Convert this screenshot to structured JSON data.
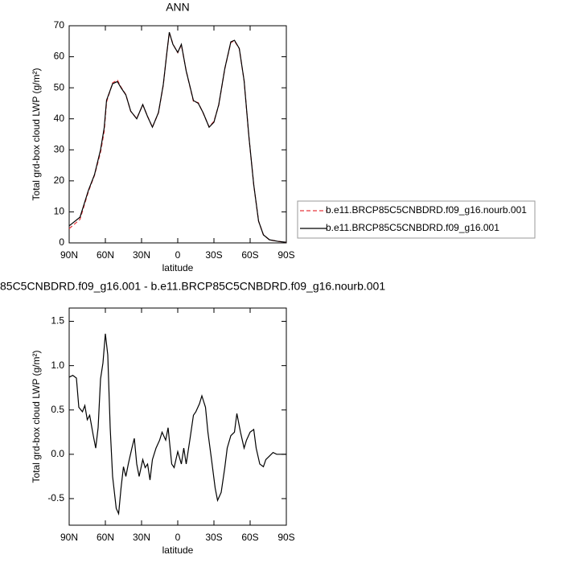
{
  "chart_data": [
    {
      "type": "line",
      "title": "ANN",
      "x_label": "latitude",
      "y_label": "Total grd-box cloud LWP (g/m²)",
      "xlim": [
        90,
        -90
      ],
      "xticks": [
        {
          "value": 90,
          "label": "90N"
        },
        {
          "value": 60,
          "label": "60N"
        },
        {
          "value": 30,
          "label": "30N"
        },
        0,
        {
          "value": -30,
          "label": "30S"
        },
        {
          "value": -60,
          "label": "60S"
        },
        {
          "value": -90,
          "label": "90S"
        }
      ],
      "ylim": [
        0,
        70
      ],
      "yticks": [
        0,
        10,
        20,
        30,
        40,
        50,
        60,
        70
      ],
      "legend": "right",
      "x": [
        90,
        81,
        74,
        69,
        64,
        61,
        59,
        54,
        50,
        47,
        43,
        39,
        34,
        29,
        25,
        21,
        16,
        12,
        9,
        7,
        4,
        0,
        -3,
        -7,
        -13,
        -17,
        -21,
        -26,
        -30,
        -34,
        -39,
        -44,
        -47,
        -51,
        -55,
        -59,
        -63,
        -67,
        -71,
        -76,
        -83,
        -90
      ],
      "series": [
        {
          "name": "b.e11.BRCP85C5CNBDRD.f09_g16.nourb.001",
          "color": "#e8383d",
          "dash": "dashed",
          "values": [
            4.6,
            7.6,
            16.6,
            21.8,
            29.2,
            35.8,
            45.4,
            51.6,
            52.5,
            50.2,
            47.8,
            42.4,
            40.1,
            44.5,
            40.8,
            37.3,
            41.9,
            50.8,
            61.3,
            67.8,
            64.1,
            61.3,
            63.8,
            55.5,
            45.6,
            45.2,
            41.9,
            37.4,
            39.2,
            44.4,
            56.1,
            64.6,
            65.1,
            62.6,
            52.3,
            34.1,
            18.7,
            7,
            2.6,
            1,
            0.5,
            0.2
          ]
        },
        {
          "name": "b.e11.BRCP85C5CNBDRD.f09_g16.001",
          "color": "#000000",
          "dash": "solid",
          "values": [
            5.5,
            8.3,
            17,
            22,
            30,
            37,
            46,
            51.3,
            52,
            50,
            47.7,
            42.5,
            40,
            44.6,
            40.7,
            37.3,
            42,
            51,
            61.4,
            67.9,
            64,
            61.4,
            64,
            55.4,
            45.9,
            45,
            42,
            37.3,
            38.9,
            44.6,
            56.2,
            64.8,
            65.3,
            62.7,
            52.3,
            34.2,
            18.7,
            7,
            2.6,
            1,
            0.5,
            0.2
          ]
        }
      ]
    },
    {
      "type": "line",
      "title": "85C5CNBDRD.f09_g16.001 - b.e11.BRCP85C5CNBDRD.f09_g16.nourb.001",
      "x_label": "latitude",
      "y_label": "Total grd-box cloud LWP (g/m²)",
      "xlim": [
        90,
        -90
      ],
      "xticks": [
        {
          "value": 90,
          "label": "90N"
        },
        {
          "value": 60,
          "label": "60N"
        },
        {
          "value": 30,
          "label": "30N"
        },
        0,
        {
          "value": -30,
          "label": "30S"
        },
        {
          "value": -60,
          "label": "60S"
        },
        {
          "value": -90,
          "label": "90S"
        }
      ],
      "ylim": [
        -0.8,
        1.65
      ],
      "yticks": [
        -0.5,
        {
          "value": 0,
          "label": "0.0"
        },
        0.5,
        {
          "value": 1,
          "label": "1.0"
        },
        1.5
      ],
      "color": "#000000",
      "x": [
        90,
        87,
        84,
        82,
        79,
        77,
        75,
        73,
        70,
        68,
        66,
        64,
        62,
        60,
        58,
        56,
        54,
        51,
        49,
        47,
        45,
        43,
        41,
        38,
        36,
        34,
        32,
        29,
        27,
        25,
        23,
        21,
        18,
        15,
        13,
        10,
        8,
        5,
        3,
        0,
        -3,
        -5,
        -7,
        -10,
        -13,
        -15,
        -18,
        -20,
        -23,
        -25,
        -28,
        -31,
        -33,
        -36,
        -39,
        -41,
        -44,
        -47,
        -49,
        -52,
        -55,
        -57,
        -60,
        -63,
        -65,
        -68,
        -71,
        -73,
        -76,
        -79,
        -82,
        -90
      ],
      "values": [
        0.87,
        0.89,
        0.86,
        0.53,
        0.48,
        0.55,
        0.39,
        0.44,
        0.21,
        0.07,
        0.3,
        0.85,
        1.03,
        1.36,
        1.12,
        0.3,
        -0.25,
        -0.61,
        -0.67,
        -0.38,
        -0.14,
        -0.25,
        -0.11,
        0.07,
        0.18,
        -0.11,
        -0.25,
        -0.06,
        -0.15,
        -0.11,
        -0.29,
        -0.06,
        0.07,
        0.16,
        0.25,
        0.16,
        0.3,
        -0.11,
        -0.15,
        0.03,
        -0.11,
        0.07,
        -0.11,
        0.16,
        0.44,
        0.48,
        0.57,
        0.66,
        0.53,
        0.25,
        -0.06,
        -0.38,
        -0.52,
        -0.43,
        -0.15,
        0.07,
        0.21,
        0.25,
        0.46,
        0.25,
        0.07,
        0.16,
        0.25,
        0.28,
        0.07,
        -0.11,
        -0.14,
        -0.06,
        -0.02,
        0.02,
        0,
        0
      ]
    }
  ]
}
